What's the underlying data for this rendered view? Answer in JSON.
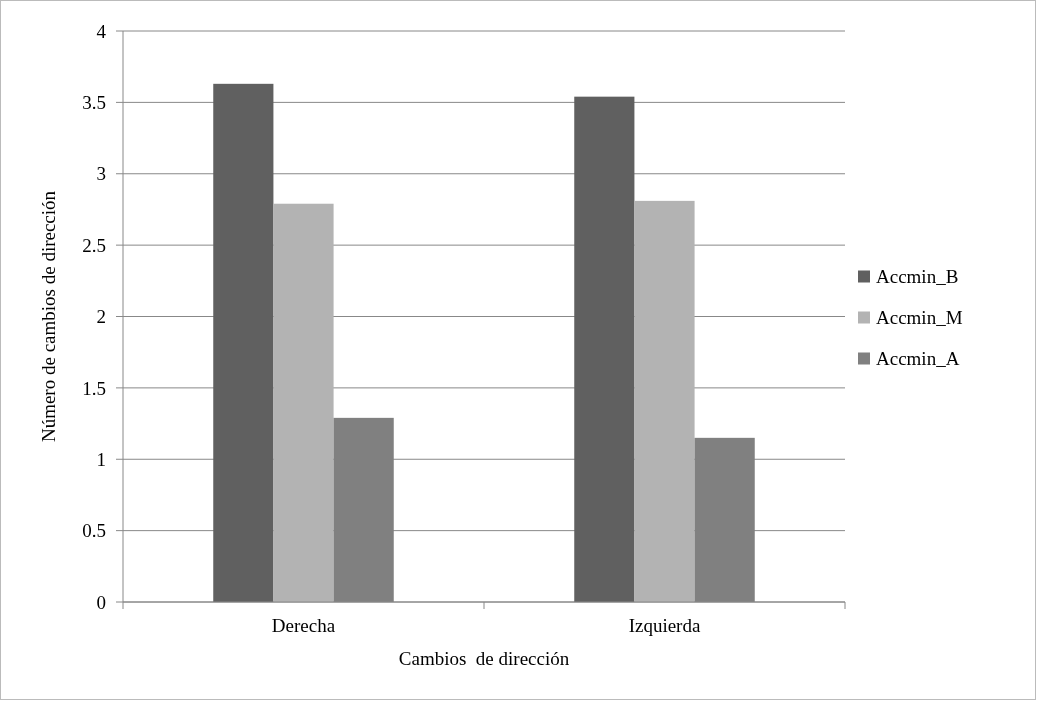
{
  "chart_data": {
    "type": "bar",
    "xlabel": "Cambios  de dirección",
    "ylabel": "Número de cambios de dirección",
    "categories": [
      "Derecha",
      "Izquierda"
    ],
    "series": [
      {
        "name": "Accmin_B",
        "color": "#606060",
        "values": [
          3.63,
          3.54
        ]
      },
      {
        "name": "Accmin_M",
        "color": "#b3b3b3",
        "values": [
          2.79,
          2.81
        ]
      },
      {
        "name": "Accmin_A",
        "color": "#808080",
        "values": [
          1.29,
          1.15
        ]
      }
    ],
    "ylim": [
      0,
      4
    ],
    "yticks": [
      0,
      0.5,
      1,
      1.5,
      2,
      2.5,
      3,
      3.5,
      4
    ],
    "grid": "y",
    "legend": "right"
  }
}
